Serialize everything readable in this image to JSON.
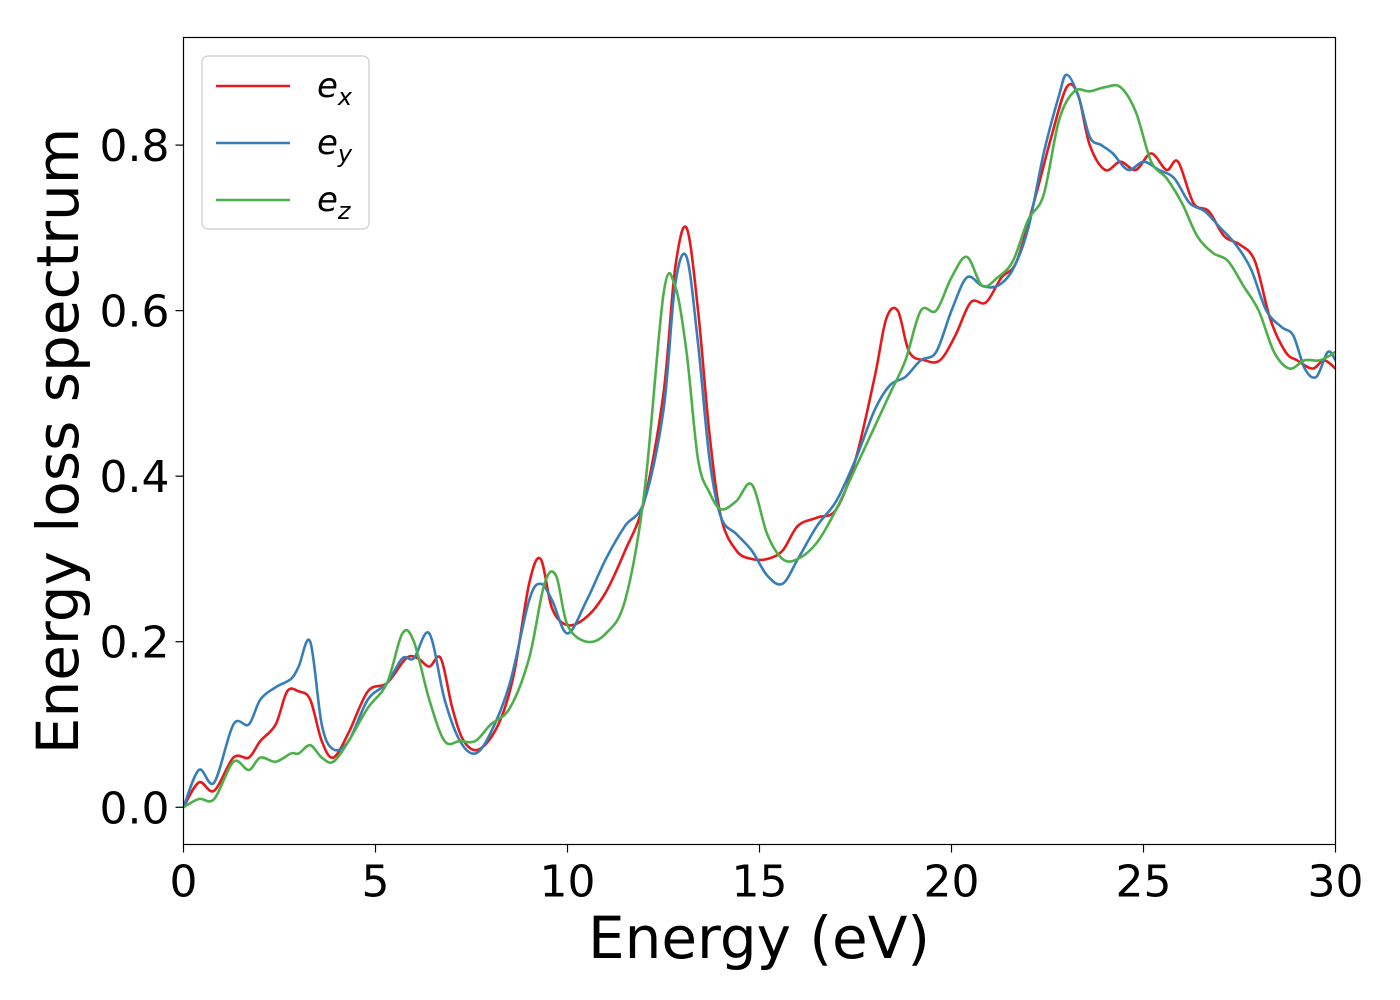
{
  "chart_data": {
    "type": "line",
    "xlabel": "Energy (eV)",
    "ylabel": "Energy loss spectrum",
    "xlim": [
      0,
      30
    ],
    "ylim": [
      -0.045,
      0.93
    ],
    "xticks": [
      0,
      5,
      10,
      15,
      20,
      25,
      30
    ],
    "xtick_labels": [
      "0",
      "5",
      "10",
      "15",
      "20",
      "25",
      "30"
    ],
    "yticks": [
      0.0,
      0.2,
      0.4,
      0.6,
      0.8
    ],
    "ytick_labels": [
      "0.0",
      "0.2",
      "0.4",
      "0.6",
      "0.8"
    ],
    "grid": false,
    "legend_position": "top-left",
    "series": [
      {
        "name": "e",
        "subscript": "x",
        "color": "#e41a1c",
        "x": [
          0,
          0.4,
          0.8,
          1.3,
          1.7,
          2.0,
          2.4,
          2.7,
          3.0,
          3.3,
          3.6,
          3.9,
          4.3,
          4.8,
          5.3,
          5.8,
          6.1,
          6.4,
          6.7,
          7.0,
          7.3,
          7.7,
          8.2,
          8.6,
          9.0,
          9.3,
          9.6,
          10.0,
          10.5,
          11.0,
          11.5,
          12.0,
          12.5,
          12.8,
          13.1,
          13.4,
          13.7,
          14.0,
          14.4,
          14.8,
          15.2,
          15.6,
          16.0,
          16.5,
          17.0,
          17.5,
          18.0,
          18.3,
          18.6,
          18.9,
          19.3,
          19.7,
          20.1,
          20.5,
          20.9,
          21.3,
          21.7,
          22.2,
          22.6,
          23.0,
          23.3,
          23.6,
          24.0,
          24.4,
          24.8,
          25.2,
          25.6,
          25.9,
          26.3,
          26.7,
          27.1,
          27.5,
          27.9,
          28.3,
          28.7,
          29.0,
          29.4,
          29.7,
          30.0
        ],
        "y": [
          0.0,
          0.03,
          0.02,
          0.06,
          0.06,
          0.08,
          0.1,
          0.14,
          0.14,
          0.13,
          0.08,
          0.06,
          0.09,
          0.14,
          0.15,
          0.18,
          0.18,
          0.17,
          0.18,
          0.12,
          0.08,
          0.07,
          0.1,
          0.16,
          0.27,
          0.3,
          0.24,
          0.22,
          0.23,
          0.26,
          0.31,
          0.37,
          0.5,
          0.65,
          0.7,
          0.6,
          0.45,
          0.35,
          0.31,
          0.3,
          0.3,
          0.31,
          0.34,
          0.35,
          0.36,
          0.42,
          0.52,
          0.59,
          0.6,
          0.55,
          0.54,
          0.54,
          0.57,
          0.61,
          0.61,
          0.64,
          0.66,
          0.74,
          0.81,
          0.87,
          0.86,
          0.8,
          0.77,
          0.78,
          0.77,
          0.79,
          0.77,
          0.78,
          0.73,
          0.72,
          0.69,
          0.68,
          0.66,
          0.59,
          0.55,
          0.54,
          0.53,
          0.54,
          0.53
        ]
      },
      {
        "name": "e",
        "subscript": "y",
        "color": "#377eb8",
        "x": [
          0,
          0.4,
          0.8,
          1.3,
          1.7,
          2.0,
          2.4,
          2.8,
          3.0,
          3.3,
          3.6,
          3.9,
          4.3,
          4.8,
          5.3,
          5.7,
          6.0,
          6.4,
          6.8,
          7.2,
          7.6,
          8.0,
          8.5,
          9.0,
          9.3,
          9.6,
          10.0,
          10.5,
          11.0,
          11.5,
          12.0,
          12.5,
          12.8,
          13.1,
          13.4,
          13.7,
          14.0,
          14.4,
          14.8,
          15.2,
          15.6,
          16.0,
          16.5,
          17.0,
          17.5,
          18.0,
          18.4,
          18.8,
          19.2,
          19.6,
          20.0,
          20.4,
          20.8,
          21.2,
          21.6,
          22.0,
          22.4,
          22.8,
          23.0,
          23.3,
          23.6,
          23.9,
          24.2,
          24.6,
          25.0,
          25.4,
          25.8,
          26.2,
          26.6,
          27.0,
          27.4,
          27.8,
          28.2,
          28.6,
          28.9,
          29.2,
          29.5,
          29.8,
          30.0
        ],
        "y": [
          0.0,
          0.045,
          0.03,
          0.1,
          0.1,
          0.13,
          0.145,
          0.155,
          0.17,
          0.2,
          0.1,
          0.07,
          0.08,
          0.13,
          0.15,
          0.18,
          0.18,
          0.21,
          0.13,
          0.08,
          0.065,
          0.09,
          0.15,
          0.25,
          0.27,
          0.25,
          0.21,
          0.25,
          0.3,
          0.34,
          0.37,
          0.48,
          0.63,
          0.665,
          0.56,
          0.42,
          0.35,
          0.33,
          0.31,
          0.28,
          0.27,
          0.3,
          0.34,
          0.37,
          0.42,
          0.48,
          0.51,
          0.52,
          0.54,
          0.55,
          0.6,
          0.64,
          0.63,
          0.63,
          0.65,
          0.7,
          0.79,
          0.86,
          0.885,
          0.86,
          0.81,
          0.8,
          0.79,
          0.77,
          0.78,
          0.77,
          0.76,
          0.73,
          0.72,
          0.7,
          0.68,
          0.65,
          0.6,
          0.58,
          0.57,
          0.53,
          0.52,
          0.55,
          0.54
        ]
      },
      {
        "name": "e",
        "subscript": "z",
        "color": "#4daf4a",
        "x": [
          0,
          0.4,
          0.8,
          1.3,
          1.7,
          2.0,
          2.4,
          2.8,
          3.0,
          3.3,
          3.6,
          3.9,
          4.3,
          4.8,
          5.3,
          5.7,
          6.0,
          6.4,
          6.8,
          7.2,
          7.6,
          8.0,
          8.5,
          9.0,
          9.4,
          9.7,
          10.0,
          10.5,
          11.0,
          11.5,
          12.0,
          12.5,
          12.8,
          13.1,
          13.4,
          13.7,
          14.0,
          14.4,
          14.8,
          15.2,
          15.6,
          16.0,
          16.5,
          17.0,
          17.5,
          18.0,
          18.4,
          18.8,
          19.2,
          19.6,
          20.0,
          20.4,
          20.8,
          21.2,
          21.6,
          22.0,
          22.4,
          22.8,
          23.2,
          23.6,
          24.0,
          24.4,
          24.8,
          25.2,
          25.6,
          26.0,
          26.4,
          26.8,
          27.2,
          27.6,
          28.0,
          28.4,
          28.8,
          29.2,
          29.6,
          30.0
        ],
        "y": [
          0.0,
          0.01,
          0.01,
          0.055,
          0.045,
          0.06,
          0.055,
          0.065,
          0.065,
          0.075,
          0.06,
          0.055,
          0.08,
          0.12,
          0.15,
          0.21,
          0.2,
          0.13,
          0.08,
          0.08,
          0.08,
          0.1,
          0.12,
          0.18,
          0.27,
          0.28,
          0.22,
          0.2,
          0.21,
          0.25,
          0.38,
          0.62,
          0.63,
          0.55,
          0.42,
          0.38,
          0.36,
          0.37,
          0.39,
          0.33,
          0.3,
          0.3,
          0.32,
          0.36,
          0.41,
          0.46,
          0.5,
          0.54,
          0.6,
          0.6,
          0.64,
          0.665,
          0.63,
          0.64,
          0.66,
          0.71,
          0.74,
          0.83,
          0.865,
          0.865,
          0.87,
          0.87,
          0.84,
          0.78,
          0.76,
          0.73,
          0.69,
          0.67,
          0.66,
          0.63,
          0.6,
          0.55,
          0.53,
          0.54,
          0.54,
          0.55
        ]
      }
    ]
  }
}
